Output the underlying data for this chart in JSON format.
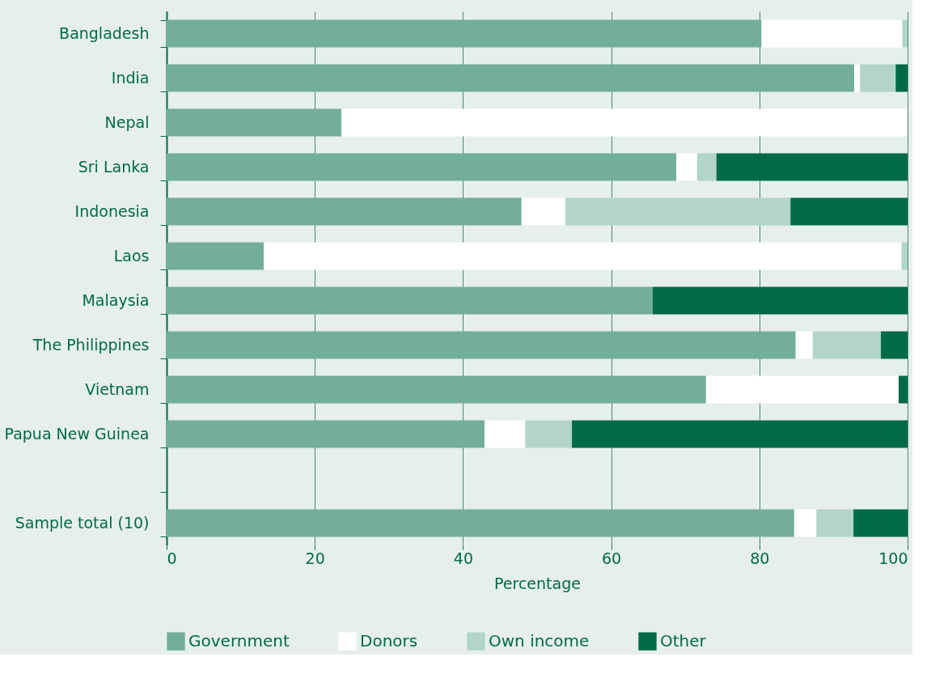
{
  "chart_data": {
    "type": "bar",
    "orientation": "horizontal",
    "stacked": true,
    "xlabel": "Percentage",
    "categories": [
      "Bangladesh",
      "India",
      "Nepal",
      "Sri Lanka",
      "Indonesia",
      "Laos",
      "Malaysia",
      "The Philippines",
      "Vietnam",
      "Papua New Guinea",
      null,
      "Sample total (10)"
    ],
    "series": [
      {
        "name": "Government",
        "color": "#72ae98",
        "values": [
          80.3,
          92.8,
          23.6,
          68.8,
          47.9,
          13.1,
          65.6,
          84.9,
          72.8,
          42.9,
          null,
          84.7
        ]
      },
      {
        "name": "Donors",
        "color": "#ffffff",
        "values": [
          19.0,
          0.8,
          76.4,
          2.8,
          5.9,
          86.1,
          0,
          2.3,
          26.0,
          5.5,
          null,
          3.0
        ]
      },
      {
        "name": "Own income",
        "color": "#b2d5c8",
        "values": [
          0.7,
          4.8,
          0,
          2.6,
          30.4,
          0.8,
          0,
          9.2,
          0,
          6.3,
          null,
          5.0
        ]
      },
      {
        "name": "Other",
        "color": "#006b45",
        "values": [
          0,
          1.6,
          0,
          25.8,
          15.8,
          0,
          34.4,
          3.6,
          1.2,
          45.3,
          null,
          7.3
        ]
      }
    ],
    "xlim": [
      0,
      100
    ],
    "xticks": [
      0,
      20,
      40,
      60,
      80,
      100
    ],
    "grid": "x",
    "legend": "bottom"
  }
}
